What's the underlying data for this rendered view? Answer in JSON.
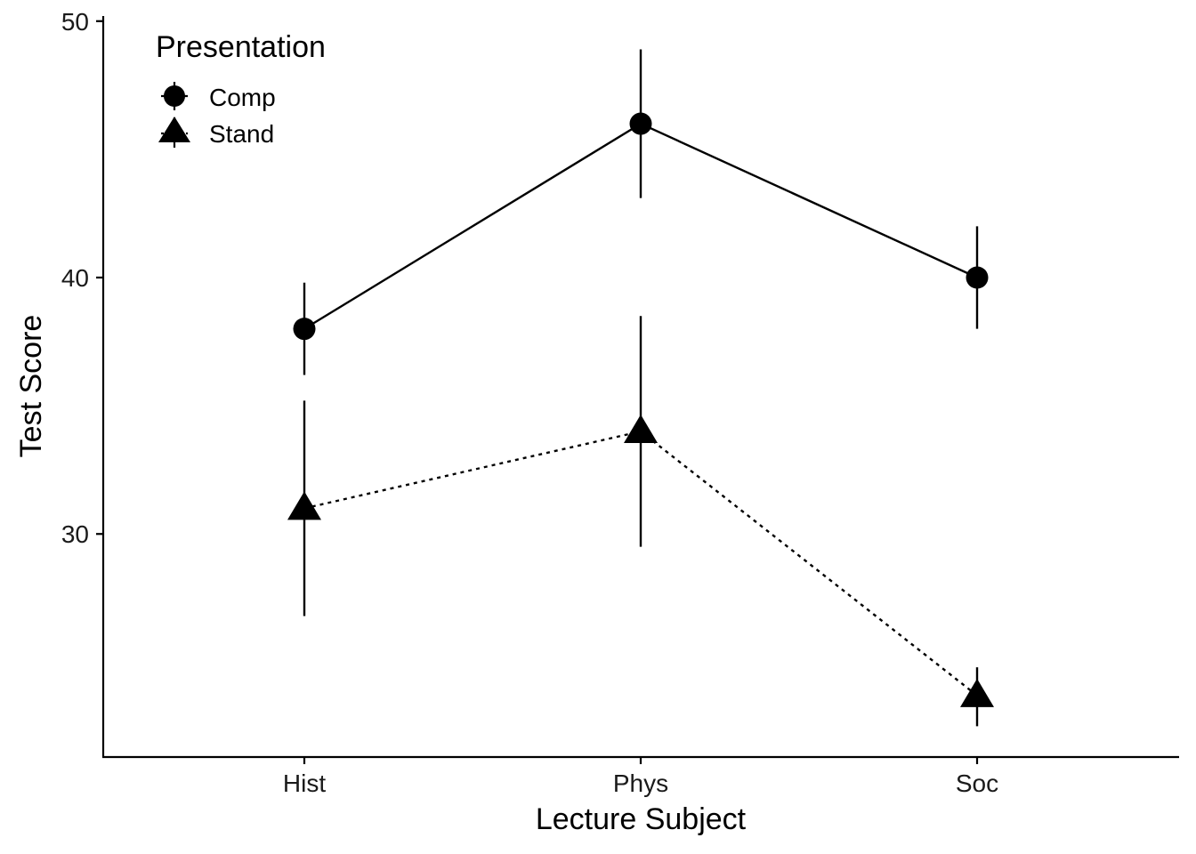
{
  "chart_data": {
    "type": "line",
    "title": "",
    "xlabel": "Lecture Subject",
    "ylabel": "Test Score",
    "categories": [
      "Hist",
      "Phys",
      "Soc"
    ],
    "ylim": [
      21.3,
      50.2
    ],
    "yticks": [
      30,
      40,
      50
    ],
    "grid": false,
    "legend": {
      "title": "Presentation",
      "placement": "top-left"
    },
    "series": [
      {
        "name": "Comp",
        "marker": "circle",
        "line_style": "solid",
        "values": [
          38,
          46,
          40
        ],
        "error_lower": [
          36.2,
          43.1,
          38.0
        ],
        "error_upper": [
          39.8,
          48.9,
          42.0
        ]
      },
      {
        "name": "Stand",
        "marker": "triangle",
        "line_style": "dotted",
        "values": [
          31,
          34,
          23.7
        ],
        "error_lower": [
          26.8,
          29.5,
          22.5
        ],
        "error_upper": [
          35.2,
          38.5,
          24.8
        ]
      }
    ],
    "colors": {
      "ink": "#000000",
      "tick_text": "#1a1a1a"
    }
  }
}
